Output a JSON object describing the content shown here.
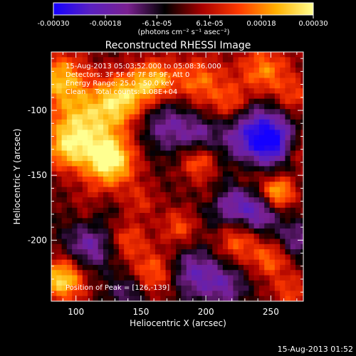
{
  "chart_data": {
    "type": "heatmap",
    "title": "Reconstructed RHESSI Image",
    "xlabel": "Heliocentric X (arcsec)",
    "ylabel": "Heliocentric Y (arcsec)",
    "xlim": [
      81,
      275
    ],
    "ylim": [
      -247,
      -55
    ],
    "x_ticks": [
      "100",
      "150",
      "200",
      "250"
    ],
    "y_ticks": [
      "-100",
      "-150",
      "-200"
    ],
    "colorbar": {
      "range": [
        -0.0003,
        0.0003
      ],
      "ticks": [
        "-0.00030",
        "-0.00018",
        "-6.1e-05",
        "6.1e-05",
        "0.00018",
        "0.00030"
      ],
      "unit": "(photons cm⁻² s⁻¹ asec⁻²)",
      "colors": [
        "#1400ff",
        "#5a20c0",
        "#7a2090",
        "#000000",
        "#a80000",
        "#ff3a00",
        "#ffb000",
        "#ffff90"
      ]
    },
    "annotations": {
      "time_range": "15-Aug-2013 05:03:52.000 to 05:08:36.000",
      "detectors": "Detectors: 3F 5F 6F 7F 8F 9F, Att 0",
      "energy": "Energy Range: 25.0 - 50.0 keV",
      "method": "Clean    Total counts: 1.08E+04",
      "peak": "Position of Peak = [126,-139]"
    },
    "peak": [
      126,
      -139
    ]
  },
  "footer": {
    "timestamp": "15-Aug-2013 01:52"
  }
}
